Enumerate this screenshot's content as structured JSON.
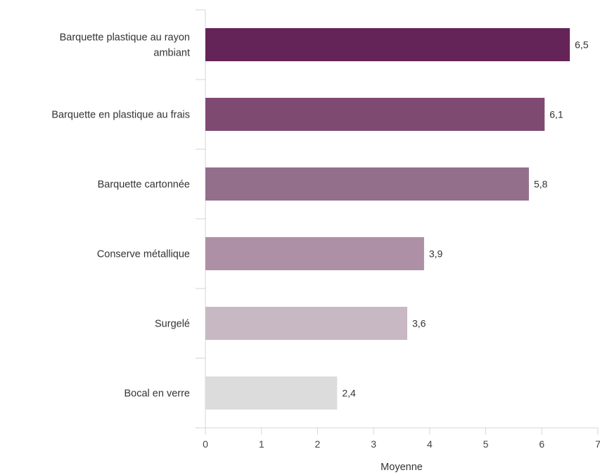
{
  "chart_data": {
    "type": "bar",
    "orientation": "horizontal",
    "title": "",
    "xlabel": "Moyenne",
    "ylabel": "",
    "xlim": [
      0,
      7
    ],
    "x_ticks": [
      "0",
      "1",
      "2",
      "3",
      "4",
      "5",
      "6",
      "7"
    ],
    "grid": false,
    "categories": [
      "Barquette plastique au rayon ambiant",
      "Barquette en plastique au frais",
      "Barquette cartonnée",
      "Conserve métallique",
      "Surgelé",
      "Bocal en verre"
    ],
    "category_lines": [
      [
        "Barquette plastique au rayon",
        "ambiant"
      ],
      [
        "Barquette en plastique au frais"
      ],
      [
        "Barquette cartonnée"
      ],
      [
        "Conserve métallique"
      ],
      [
        "Surgelé"
      ],
      [
        "Bocal en verre"
      ]
    ],
    "values": [
      6.5,
      6.05,
      5.77,
      3.9,
      3.6,
      2.35
    ],
    "value_labels": [
      "6,5",
      "6,1",
      "5,8",
      "3,9",
      "3,6",
      "2,4"
    ],
    "colors": [
      "#652457",
      "#7f4a72",
      "#946f8c",
      "#ae90a6",
      "#c8b8c3",
      "#dcdcdc"
    ]
  }
}
